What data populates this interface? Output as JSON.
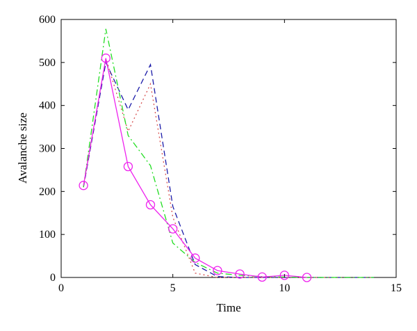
{
  "chart_data": {
    "type": "line",
    "xlabel": "Time",
    "ylabel": "Avalanche size",
    "xlim": [
      0,
      15
    ],
    "ylim": [
      0,
      600
    ],
    "xticks": [
      "0",
      "5",
      "10",
      "15"
    ],
    "yticks": [
      "0",
      "100",
      "200",
      "300",
      "400",
      "500",
      "600"
    ],
    "grid": false,
    "legend": "none",
    "series": [
      {
        "color": "#1a1aa8",
        "style": "dashed",
        "marker": "none",
        "x": [
          1,
          2,
          3,
          4,
          5,
          6,
          7,
          8,
          9,
          10,
          11,
          12,
          13,
          14
        ],
        "y": [
          210,
          500,
          390,
          495,
          165,
          30,
          2,
          0,
          0,
          0,
          0,
          0,
          0,
          0
        ]
      },
      {
        "color": "#d65050",
        "style": "dotted",
        "marker": "none",
        "x": [
          1,
          2,
          3,
          4,
          5,
          6,
          7,
          8,
          9,
          10,
          11,
          12,
          13,
          14
        ],
        "y": [
          210,
          510,
          340,
          450,
          140,
          10,
          0,
          0,
          0,
          0,
          0,
          0,
          0,
          0
        ]
      },
      {
        "color": "#22dd22",
        "style": "dashdot",
        "marker": "none",
        "x": [
          1,
          2,
          3,
          4,
          5,
          6,
          7,
          8,
          9,
          10,
          11,
          12,
          13,
          14
        ],
        "y": [
          210,
          578,
          330,
          260,
          80,
          35,
          10,
          5,
          2,
          1,
          0,
          0,
          0,
          0
        ]
      },
      {
        "color": "#ee22ee",
        "style": "solid",
        "marker": "circle",
        "x": [
          1,
          2,
          3,
          4,
          5,
          6,
          7,
          8,
          9,
          10,
          11
        ],
        "y": [
          214,
          510,
          258,
          169,
          113,
          45,
          16,
          8,
          1,
          5,
          0
        ]
      }
    ]
  }
}
